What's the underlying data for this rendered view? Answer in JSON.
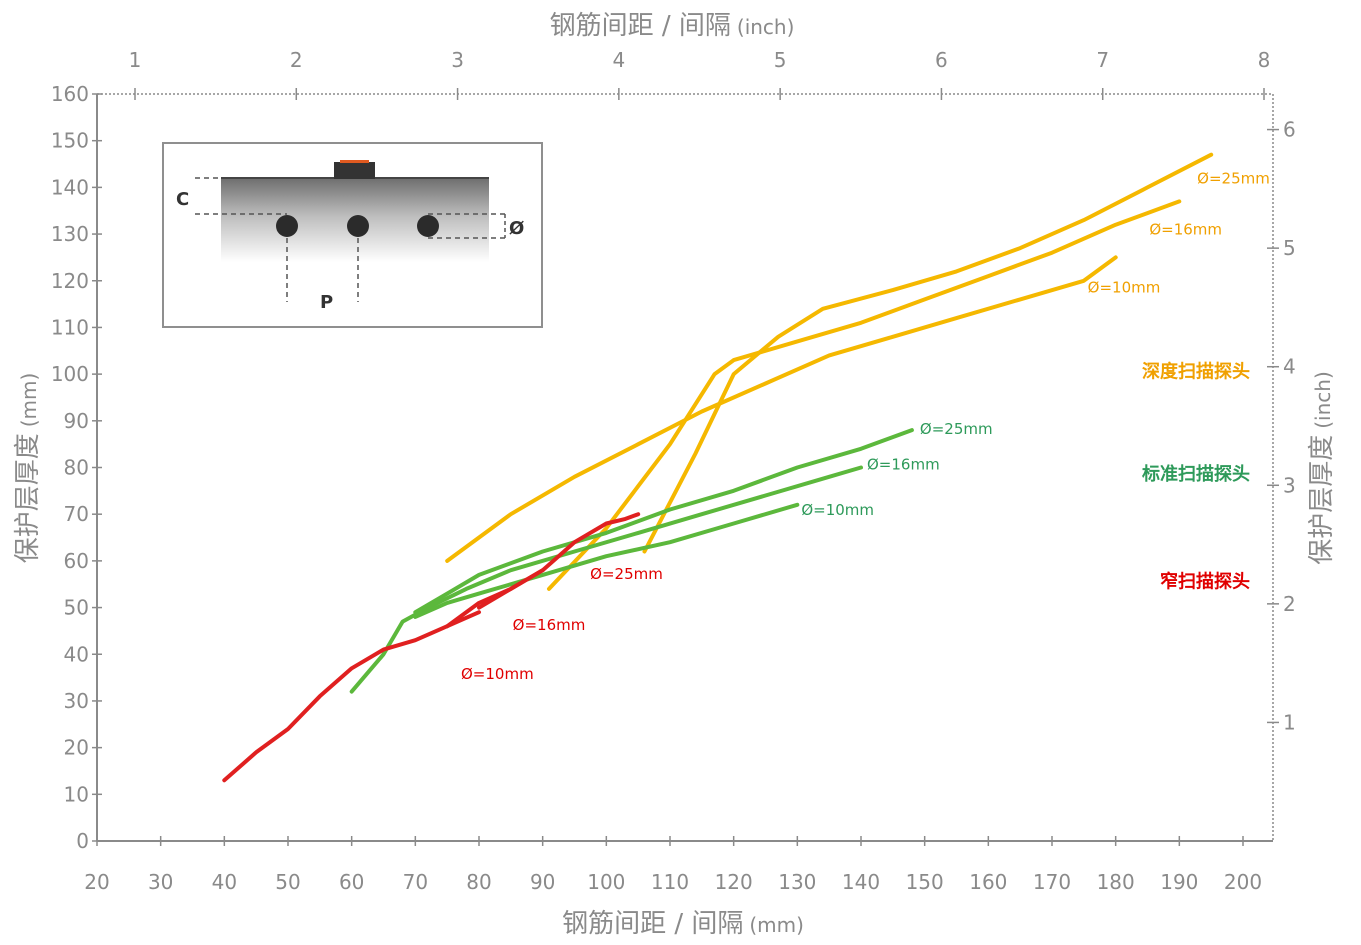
{
  "chart_data": {
    "type": "line",
    "x_bottom": {
      "title": "钢筋间距 / 间隔",
      "unit": "(mm)",
      "range": [
        20,
        200
      ],
      "ticks": [
        20,
        30,
        40,
        50,
        60,
        70,
        80,
        90,
        100,
        110,
        120,
        130,
        140,
        150,
        160,
        170,
        180,
        190,
        200
      ]
    },
    "x_top": {
      "title": "钢筋间距 / 间隔",
      "unit": "(inch)",
      "range": [
        0.5,
        8
      ],
      "ticks": [
        1,
        2,
        3,
        4,
        5,
        6,
        7,
        8
      ]
    },
    "y_left": {
      "title": "保护层厚度",
      "unit": "(mm)",
      "range": [
        0,
        160
      ],
      "ticks": [
        0,
        10,
        20,
        30,
        40,
        50,
        60,
        70,
        80,
        90,
        100,
        110,
        120,
        130,
        140,
        150,
        160
      ]
    },
    "y_right": {
      "title": "保护层厚度",
      "unit": "(inch)",
      "range": [
        0,
        6.3
      ],
      "ticks": [
        1,
        2,
        3,
        4,
        5,
        6
      ]
    },
    "grid": false,
    "probes": [
      {
        "name": "深度扫描探头",
        "color": "#f5b800",
        "label_color": "#f0a000"
      },
      {
        "name": "标准扫描探头",
        "color": "#5cb83c",
        "label_color": "#2e9a5a"
      },
      {
        "name": "窄扫描探头",
        "color": "#e02020",
        "label_color": "#e00000"
      }
    ],
    "series": [
      {
        "name": "Ø=25mm",
        "probe": 0,
        "color": "#f5b800",
        "x": [
          106,
          114,
          120,
          127,
          134,
          145,
          155,
          165,
          175,
          185,
          195
        ],
        "y": [
          62,
          83,
          100,
          108,
          114,
          118,
          122,
          127,
          133,
          140,
          147
        ]
      },
      {
        "name": "Ø=16mm",
        "probe": 0,
        "color": "#f5b800",
        "x": [
          91,
          100,
          110,
          117,
          120,
          130,
          140,
          150,
          160,
          170,
          180,
          190
        ],
        "y": [
          54,
          67,
          85,
          100,
          103,
          107,
          111,
          116,
          121,
          126,
          132,
          137
        ]
      },
      {
        "name": "Ø=10mm",
        "probe": 0,
        "color": "#f5b800",
        "x": [
          75,
          85,
          95,
          105,
          115,
          125,
          135,
          145,
          155,
          165,
          175,
          180
        ],
        "y": [
          60,
          70,
          78,
          85,
          92,
          98,
          104,
          108,
          112,
          116,
          120,
          125
        ]
      },
      {
        "name": "Ø=25mm",
        "probe": 1,
        "color": "#5cb83c",
        "x": [
          70,
          75,
          80,
          90,
          100,
          110,
          120,
          130,
          140,
          148
        ],
        "y": [
          49,
          53,
          57,
          62,
          66,
          71,
          75,
          80,
          84,
          88
        ]
      },
      {
        "name": "Ø=16mm",
        "probe": 1,
        "color": "#5cb83c",
        "x": [
          60,
          65,
          68,
          72,
          78,
          85,
          95,
          105,
          115,
          125,
          135,
          140
        ],
        "y": [
          32,
          40,
          47,
          50,
          54,
          58,
          62,
          66,
          70,
          74,
          78,
          80
        ]
      },
      {
        "name": "Ø=10mm",
        "probe": 1,
        "color": "#5cb83c",
        "x": [
          70,
          75,
          80,
          90,
          100,
          110,
          120,
          130
        ],
        "y": [
          48,
          51,
          53,
          57,
          61,
          64,
          68,
          72
        ]
      },
      {
        "name": "Ø=25mm",
        "probe": 2,
        "color": "#e02020",
        "x": [
          80,
          85,
          90,
          95,
          100,
          103,
          105
        ],
        "y": [
          50,
          54,
          58,
          64,
          68,
          69,
          70
        ]
      },
      {
        "name": "Ø=16mm",
        "probe": 2,
        "color": "#e02020",
        "x": [
          75,
          80,
          85,
          90
        ],
        "y": [
          46,
          51,
          54,
          58
        ]
      },
      {
        "name": "Ø=10mm",
        "probe": 2,
        "color": "#e02020",
        "x": [
          40,
          45,
          50,
          55,
          60,
          65,
          70,
          75,
          80
        ],
        "y": [
          13,
          19,
          24,
          31,
          37,
          41,
          43,
          46,
          49
        ]
      }
    ],
    "inset": {
      "cover_label": "C",
      "diameter_label": "Ø",
      "pitch_label": "P"
    }
  }
}
